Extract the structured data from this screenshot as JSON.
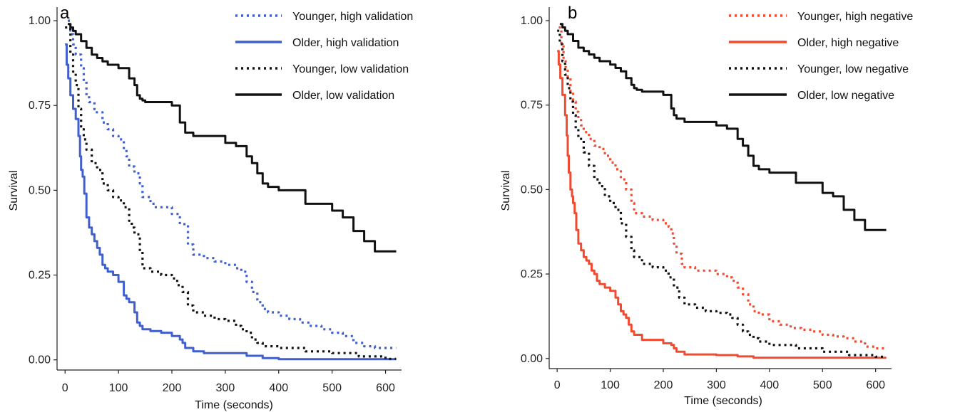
{
  "chart_data": [
    {
      "type": "line",
      "panel_label": "a",
      "xlabel": "Time (seconds)",
      "ylabel": "Survival",
      "xlim": [
        -15,
        630
      ],
      "ylim": [
        -0.03,
        1.04
      ],
      "xticks": [
        0,
        100,
        200,
        300,
        400,
        500,
        600
      ],
      "yticks": [
        0.0,
        0.25,
        0.5,
        0.75,
        1.0
      ],
      "ytick_labels": [
        "0.00",
        "0.25",
        "0.50",
        "0.75",
        "1.00"
      ],
      "grid": false,
      "legend_position": "top-right",
      "series": [
        {
          "name": "Younger, high validation",
          "color": "#3f5fcf",
          "style": "dotted",
          "x": [
            5,
            10,
            15,
            20,
            30,
            35,
            40,
            45,
            55,
            70,
            80,
            90,
            100,
            110,
            115,
            120,
            130,
            140,
            145,
            160,
            170,
            200,
            210,
            215,
            230,
            240,
            260,
            280,
            300,
            320,
            330,
            340,
            350,
            360,
            370,
            380,
            400,
            420,
            440,
            460,
            480,
            500,
            520,
            540,
            560,
            580,
            600,
            620
          ],
          "y": [
            1.0,
            0.96,
            0.93,
            0.9,
            0.86,
            0.82,
            0.78,
            0.76,
            0.73,
            0.7,
            0.68,
            0.66,
            0.65,
            0.62,
            0.6,
            0.57,
            0.55,
            0.52,
            0.48,
            0.46,
            0.45,
            0.43,
            0.43,
            0.4,
            0.34,
            0.31,
            0.3,
            0.29,
            0.28,
            0.27,
            0.26,
            0.23,
            0.2,
            0.17,
            0.15,
            0.14,
            0.13,
            0.12,
            0.11,
            0.1,
            0.09,
            0.08,
            0.07,
            0.05,
            0.04,
            0.035,
            0.035,
            0.035
          ]
        },
        {
          "name": "Older, high validation",
          "color": "#3f5fcf",
          "style": "solid",
          "x": [
            0,
            3,
            6,
            10,
            15,
            20,
            25,
            28,
            30,
            33,
            36,
            40,
            45,
            50,
            55,
            60,
            65,
            70,
            75,
            80,
            90,
            100,
            110,
            115,
            120,
            130,
            135,
            140,
            145,
            160,
            180,
            200,
            215,
            220,
            225,
            240,
            260,
            300,
            340,
            370,
            400,
            450,
            500,
            550,
            600,
            620
          ],
          "y": [
            0.93,
            0.87,
            0.83,
            0.78,
            0.74,
            0.71,
            0.66,
            0.6,
            0.56,
            0.54,
            0.49,
            0.42,
            0.39,
            0.37,
            0.35,
            0.33,
            0.31,
            0.28,
            0.27,
            0.26,
            0.25,
            0.23,
            0.19,
            0.18,
            0.17,
            0.14,
            0.11,
            0.1,
            0.09,
            0.085,
            0.08,
            0.07,
            0.06,
            0.05,
            0.035,
            0.025,
            0.02,
            0.02,
            0.012,
            0.005,
            0.002,
            0.002,
            0.002,
            0.002,
            0.002,
            0.002
          ]
        },
        {
          "name": "Younger, low validation",
          "color": "#111111",
          "style": "dotted",
          "x": [
            0,
            10,
            15,
            20,
            25,
            30,
            35,
            40,
            50,
            60,
            70,
            80,
            90,
            100,
            110,
            120,
            125,
            130,
            140,
            145,
            160,
            180,
            200,
            210,
            220,
            230,
            240,
            260,
            280,
            300,
            320,
            330,
            340,
            350,
            360,
            370,
            400,
            450,
            500,
            550,
            600,
            620
          ],
          "y": [
            0.98,
            0.9,
            0.85,
            0.81,
            0.74,
            0.68,
            0.65,
            0.62,
            0.58,
            0.56,
            0.52,
            0.5,
            0.48,
            0.47,
            0.45,
            0.41,
            0.39,
            0.37,
            0.32,
            0.27,
            0.26,
            0.25,
            0.24,
            0.22,
            0.2,
            0.16,
            0.14,
            0.13,
            0.12,
            0.115,
            0.1,
            0.09,
            0.08,
            0.06,
            0.05,
            0.04,
            0.035,
            0.025,
            0.02,
            0.01,
            0.003,
            0.003
          ]
        },
        {
          "name": "Older, low validation",
          "color": "#111111",
          "style": "solid",
          "x": [
            5,
            10,
            15,
            20,
            30,
            40,
            50,
            60,
            70,
            80,
            100,
            120,
            130,
            135,
            140,
            145,
            150,
            160,
            200,
            215,
            225,
            240,
            300,
            320,
            340,
            350,
            360,
            370,
            380,
            400,
            450,
            500,
            520,
            540,
            560,
            580,
            620
          ],
          "y": [
            0.99,
            0.98,
            0.97,
            0.96,
            0.94,
            0.92,
            0.9,
            0.89,
            0.88,
            0.87,
            0.86,
            0.83,
            0.81,
            0.78,
            0.77,
            0.765,
            0.76,
            0.76,
            0.75,
            0.7,
            0.67,
            0.66,
            0.64,
            0.63,
            0.6,
            0.58,
            0.55,
            0.52,
            0.51,
            0.5,
            0.46,
            0.44,
            0.42,
            0.38,
            0.35,
            0.32,
            0.32
          ]
        }
      ]
    },
    {
      "type": "line",
      "panel_label": "b",
      "xlabel": "Time (seconds)",
      "ylabel": "Survival",
      "xlim": [
        -15,
        630
      ],
      "ylim": [
        -0.03,
        1.04
      ],
      "xticks": [
        0,
        100,
        200,
        300,
        400,
        500,
        600
      ],
      "yticks": [
        0.0,
        0.25,
        0.5,
        0.75,
        1.0
      ],
      "ytick_labels": [
        "0.00",
        "0.25",
        "0.50",
        "0.75",
        "1.00"
      ],
      "grid": false,
      "legend_position": "top-right",
      "series": [
        {
          "name": "Younger, high negative",
          "color": "#f04a30",
          "style": "dotted",
          "x": [
            3,
            8,
            12,
            16,
            20,
            25,
            30,
            35,
            40,
            45,
            50,
            60,
            70,
            80,
            90,
            100,
            110,
            120,
            130,
            140,
            145,
            160,
            180,
            200,
            210,
            215,
            220,
            225,
            235,
            240,
            260,
            280,
            300,
            320,
            330,
            340,
            350,
            360,
            370,
            380,
            400,
            420,
            440,
            460,
            480,
            500,
            520,
            540,
            560,
            580,
            600,
            620
          ],
          "y": [
            0.98,
            0.93,
            0.89,
            0.86,
            0.83,
            0.79,
            0.76,
            0.73,
            0.71,
            0.69,
            0.67,
            0.65,
            0.63,
            0.62,
            0.6,
            0.58,
            0.56,
            0.53,
            0.5,
            0.46,
            0.43,
            0.42,
            0.41,
            0.4,
            0.39,
            0.37,
            0.34,
            0.31,
            0.28,
            0.27,
            0.26,
            0.26,
            0.25,
            0.24,
            0.23,
            0.21,
            0.19,
            0.16,
            0.14,
            0.13,
            0.11,
            0.1,
            0.09,
            0.085,
            0.08,
            0.07,
            0.065,
            0.06,
            0.05,
            0.035,
            0.03,
            0.03
          ]
        },
        {
          "name": "Older, high negative",
          "color": "#f04a30",
          "style": "solid",
          "x": [
            0,
            3,
            6,
            10,
            15,
            18,
            20,
            22,
            25,
            28,
            30,
            33,
            36,
            40,
            45,
            50,
            55,
            60,
            65,
            70,
            75,
            80,
            90,
            100,
            110,
            115,
            120,
            125,
            130,
            135,
            140,
            145,
            160,
            200,
            215,
            220,
            225,
            240,
            300,
            340,
            370,
            400,
            450,
            500,
            550,
            600,
            620
          ],
          "y": [
            0.91,
            0.87,
            0.83,
            0.78,
            0.72,
            0.66,
            0.6,
            0.55,
            0.5,
            0.48,
            0.46,
            0.43,
            0.38,
            0.34,
            0.32,
            0.3,
            0.29,
            0.28,
            0.26,
            0.25,
            0.23,
            0.22,
            0.21,
            0.2,
            0.18,
            0.16,
            0.14,
            0.13,
            0.12,
            0.1,
            0.08,
            0.07,
            0.055,
            0.045,
            0.04,
            0.03,
            0.02,
            0.012,
            0.01,
            0.006,
            0.002,
            0.002,
            0.002,
            0.002,
            0.002,
            0.002,
            0.002
          ]
        },
        {
          "name": "Younger, low negative",
          "color": "#111111",
          "style": "dotted",
          "x": [
            0,
            5,
            10,
            15,
            20,
            25,
            30,
            35,
            40,
            50,
            60,
            70,
            80,
            90,
            100,
            110,
            120,
            130,
            140,
            145,
            160,
            180,
            200,
            210,
            220,
            230,
            240,
            260,
            280,
            300,
            320,
            330,
            340,
            350,
            360,
            370,
            380,
            400,
            450,
            500,
            550,
            600,
            620
          ],
          "y": [
            0.97,
            0.93,
            0.88,
            0.84,
            0.8,
            0.76,
            0.72,
            0.68,
            0.65,
            0.61,
            0.57,
            0.53,
            0.51,
            0.48,
            0.46,
            0.44,
            0.4,
            0.36,
            0.32,
            0.3,
            0.28,
            0.27,
            0.26,
            0.24,
            0.21,
            0.18,
            0.16,
            0.15,
            0.14,
            0.135,
            0.13,
            0.12,
            0.1,
            0.08,
            0.07,
            0.06,
            0.05,
            0.04,
            0.03,
            0.02,
            0.01,
            0.005,
            0.005
          ]
        },
        {
          "name": "Older, low negative",
          "color": "#111111",
          "style": "solid",
          "x": [
            5,
            10,
            15,
            20,
            30,
            40,
            50,
            60,
            70,
            80,
            100,
            110,
            120,
            130,
            140,
            145,
            150,
            160,
            200,
            215,
            220,
            225,
            240,
            300,
            320,
            340,
            350,
            360,
            370,
            380,
            400,
            450,
            500,
            520,
            540,
            560,
            580,
            620
          ],
          "y": [
            0.99,
            0.98,
            0.97,
            0.96,
            0.94,
            0.92,
            0.91,
            0.9,
            0.89,
            0.88,
            0.87,
            0.86,
            0.85,
            0.83,
            0.81,
            0.8,
            0.795,
            0.79,
            0.78,
            0.74,
            0.72,
            0.71,
            0.7,
            0.69,
            0.68,
            0.65,
            0.63,
            0.6,
            0.57,
            0.56,
            0.55,
            0.52,
            0.49,
            0.48,
            0.44,
            0.41,
            0.38,
            0.38
          ]
        }
      ]
    }
  ]
}
